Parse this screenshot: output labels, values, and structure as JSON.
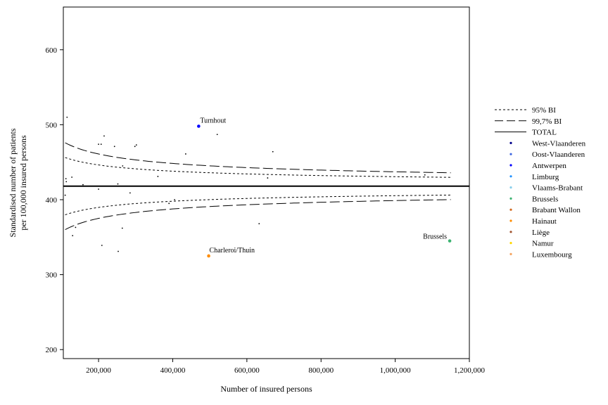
{
  "chart_data": {
    "type": "scatter",
    "xlabel": "Number of insured persons",
    "ylabel_lines": [
      "Standardised number of patients",
      "per 100,000 insured persons"
    ],
    "xlim": [
      105000,
      1200000
    ],
    "ylim": [
      188,
      657
    ],
    "x_ticks": [
      200000,
      400000,
      600000,
      800000,
      1000000,
      1200000
    ],
    "x_tick_labels": [
      "200,000",
      "400,000",
      "600,000",
      "800,000",
      "1,000,000",
      "1,200,000"
    ],
    "y_ticks": [
      200,
      300,
      400,
      500,
      600
    ],
    "y_tick_labels": [
      "200",
      "300",
      "400",
      "500",
      "600"
    ],
    "total": 418,
    "z95": 1.96,
    "z997": 2.97,
    "curve_x_range": [
      110000,
      1150000
    ],
    "legend": {
      "position": "right",
      "lines": [
        {
          "label": "95% BI",
          "style": "dotted"
        },
        {
          "label": "99,7% BI",
          "style": "dashed"
        },
        {
          "label": "TOTAL",
          "style": "solid"
        }
      ],
      "provinces": [
        {
          "label": "West-Vlaanderen",
          "color": "#00008b"
        },
        {
          "label": "Oost-Vlaanderen",
          "color": "#4169e1"
        },
        {
          "label": "Antwerpen",
          "color": "#0000ff"
        },
        {
          "label": "Limburg",
          "color": "#1e90ff"
        },
        {
          "label": "Vlaams-Brabant",
          "color": "#87ceeb"
        },
        {
          "label": "Brussels",
          "color": "#3cb371"
        },
        {
          "label": "Brabant Wallon",
          "color": "#d2691e"
        },
        {
          "label": "Hainaut",
          "color": "#ff8c00"
        },
        {
          "label": "Liège",
          "color": "#a0522d"
        },
        {
          "label": "Namur",
          "color": "#ffd700"
        },
        {
          "label": "Luxembourg",
          "color": "#f4a460"
        }
      ]
    },
    "highlighted": [
      {
        "label": "Turnhout",
        "x": 470000,
        "y": 498,
        "color": "#0000ff"
      },
      {
        "label": "Charleroi/Thuin",
        "x": 497000,
        "y": 325,
        "color": "#ff8c00"
      },
      {
        "label": "Brussels",
        "x": 1147000,
        "y": 345,
        "color": "#3cb371"
      }
    ],
    "points": [
      {
        "x": 115000,
        "y": 510
      },
      {
        "x": 112000,
        "y": 428
      },
      {
        "x": 113000,
        "y": 424
      },
      {
        "x": 110000,
        "y": 406
      },
      {
        "x": 128000,
        "y": 430
      },
      {
        "x": 130000,
        "y": 352
      },
      {
        "x": 138000,
        "y": 363
      },
      {
        "x": 158000,
        "y": 420
      },
      {
        "x": 200000,
        "y": 474
      },
      {
        "x": 207000,
        "y": 474
      },
      {
        "x": 215000,
        "y": 485
      },
      {
        "x": 200000,
        "y": 414
      },
      {
        "x": 209000,
        "y": 339
      },
      {
        "x": 243000,
        "y": 471
      },
      {
        "x": 252000,
        "y": 421
      },
      {
        "x": 253000,
        "y": 331
      },
      {
        "x": 265000,
        "y": 445
      },
      {
        "x": 264000,
        "y": 362
      },
      {
        "x": 285000,
        "y": 409
      },
      {
        "x": 298000,
        "y": 471
      },
      {
        "x": 302000,
        "y": 473
      },
      {
        "x": 360000,
        "y": 431
      },
      {
        "x": 390000,
        "y": 395
      },
      {
        "x": 405000,
        "y": 400
      },
      {
        "x": 435000,
        "y": 461
      },
      {
        "x": 520000,
        "y": 487
      },
      {
        "x": 633000,
        "y": 368
      },
      {
        "x": 656000,
        "y": 429
      },
      {
        "x": 670000,
        "y": 464
      },
      {
        "x": 1080000,
        "y": 433
      }
    ]
  }
}
